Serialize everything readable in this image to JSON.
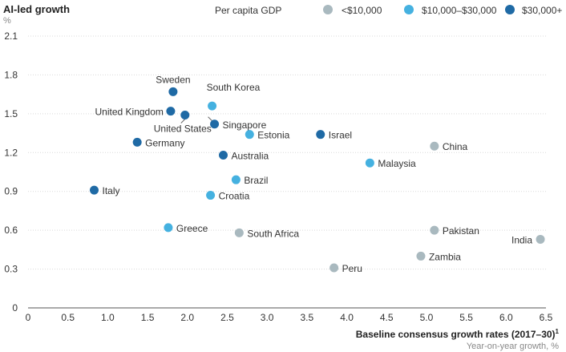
{
  "colors": {
    "low": "#a9b9bf",
    "mid": "#45b1e0",
    "high": "#1f6aa5"
  },
  "chart_data": {
    "type": "scatter",
    "ylabel": "AI-led growth",
    "yunit": "%",
    "xlabel": "Baseline consensus growth rates (2017–30)",
    "xlabel_sup": "1",
    "xunit": "Year-on-year growth, %",
    "xlim": [
      0,
      6.5
    ],
    "ylim": [
      0,
      2.1
    ],
    "xticks": [
      "0",
      "0.5",
      "1.0",
      "1.5",
      "2.0",
      "2.5",
      "3.0",
      "3.5",
      "4.0",
      "4.5",
      "5.0",
      "5.5",
      "6.0",
      "6.5"
    ],
    "yticks": [
      "0",
      "0.3",
      "0.6",
      "0.9",
      "1.2",
      "1.5",
      "1.8",
      "2.1"
    ],
    "grid": true,
    "legend": {
      "title": "Per capita GDP",
      "position": "top-right",
      "entries": [
        {
          "key": "low",
          "label": "<$10,000"
        },
        {
          "key": "mid",
          "label": "$10,000–$30,000"
        },
        {
          "key": "high",
          "label": "$30,000+"
        }
      ]
    },
    "points": [
      {
        "name": "Sweden",
        "x": 1.82,
        "y": 1.67,
        "group": "high"
      },
      {
        "name": "South Korea",
        "x": 2.31,
        "y": 1.56,
        "group": "mid"
      },
      {
        "name": "United Kingdom",
        "x": 1.79,
        "y": 1.52,
        "group": "high"
      },
      {
        "name": "United States",
        "x": 1.97,
        "y": 1.49,
        "group": "high"
      },
      {
        "name": "Singapore",
        "x": 2.34,
        "y": 1.42,
        "group": "high"
      },
      {
        "name": "Estonia",
        "x": 2.78,
        "y": 1.34,
        "group": "mid"
      },
      {
        "name": "Israel",
        "x": 3.67,
        "y": 1.34,
        "group": "high"
      },
      {
        "name": "China",
        "x": 5.1,
        "y": 1.25,
        "group": "low"
      },
      {
        "name": "Germany",
        "x": 1.37,
        "y": 1.28,
        "group": "high"
      },
      {
        "name": "Australia",
        "x": 2.45,
        "y": 1.18,
        "group": "high"
      },
      {
        "name": "Malaysia",
        "x": 4.29,
        "y": 1.12,
        "group": "mid"
      },
      {
        "name": "Brazil",
        "x": 2.61,
        "y": 0.99,
        "group": "mid"
      },
      {
        "name": "Italy",
        "x": 0.83,
        "y": 0.91,
        "group": "high"
      },
      {
        "name": "Croatia",
        "x": 2.29,
        "y": 0.87,
        "group": "mid"
      },
      {
        "name": "Greece",
        "x": 1.76,
        "y": 0.62,
        "group": "mid"
      },
      {
        "name": "South Africa",
        "x": 2.65,
        "y": 0.58,
        "group": "low"
      },
      {
        "name": "Pakistan",
        "x": 5.1,
        "y": 0.6,
        "group": "low"
      },
      {
        "name": "India",
        "x": 6.43,
        "y": 0.53,
        "group": "low"
      },
      {
        "name": "Zambia",
        "x": 4.93,
        "y": 0.4,
        "group": "low"
      },
      {
        "name": "Peru",
        "x": 3.84,
        "y": 0.31,
        "group": "low"
      }
    ]
  }
}
